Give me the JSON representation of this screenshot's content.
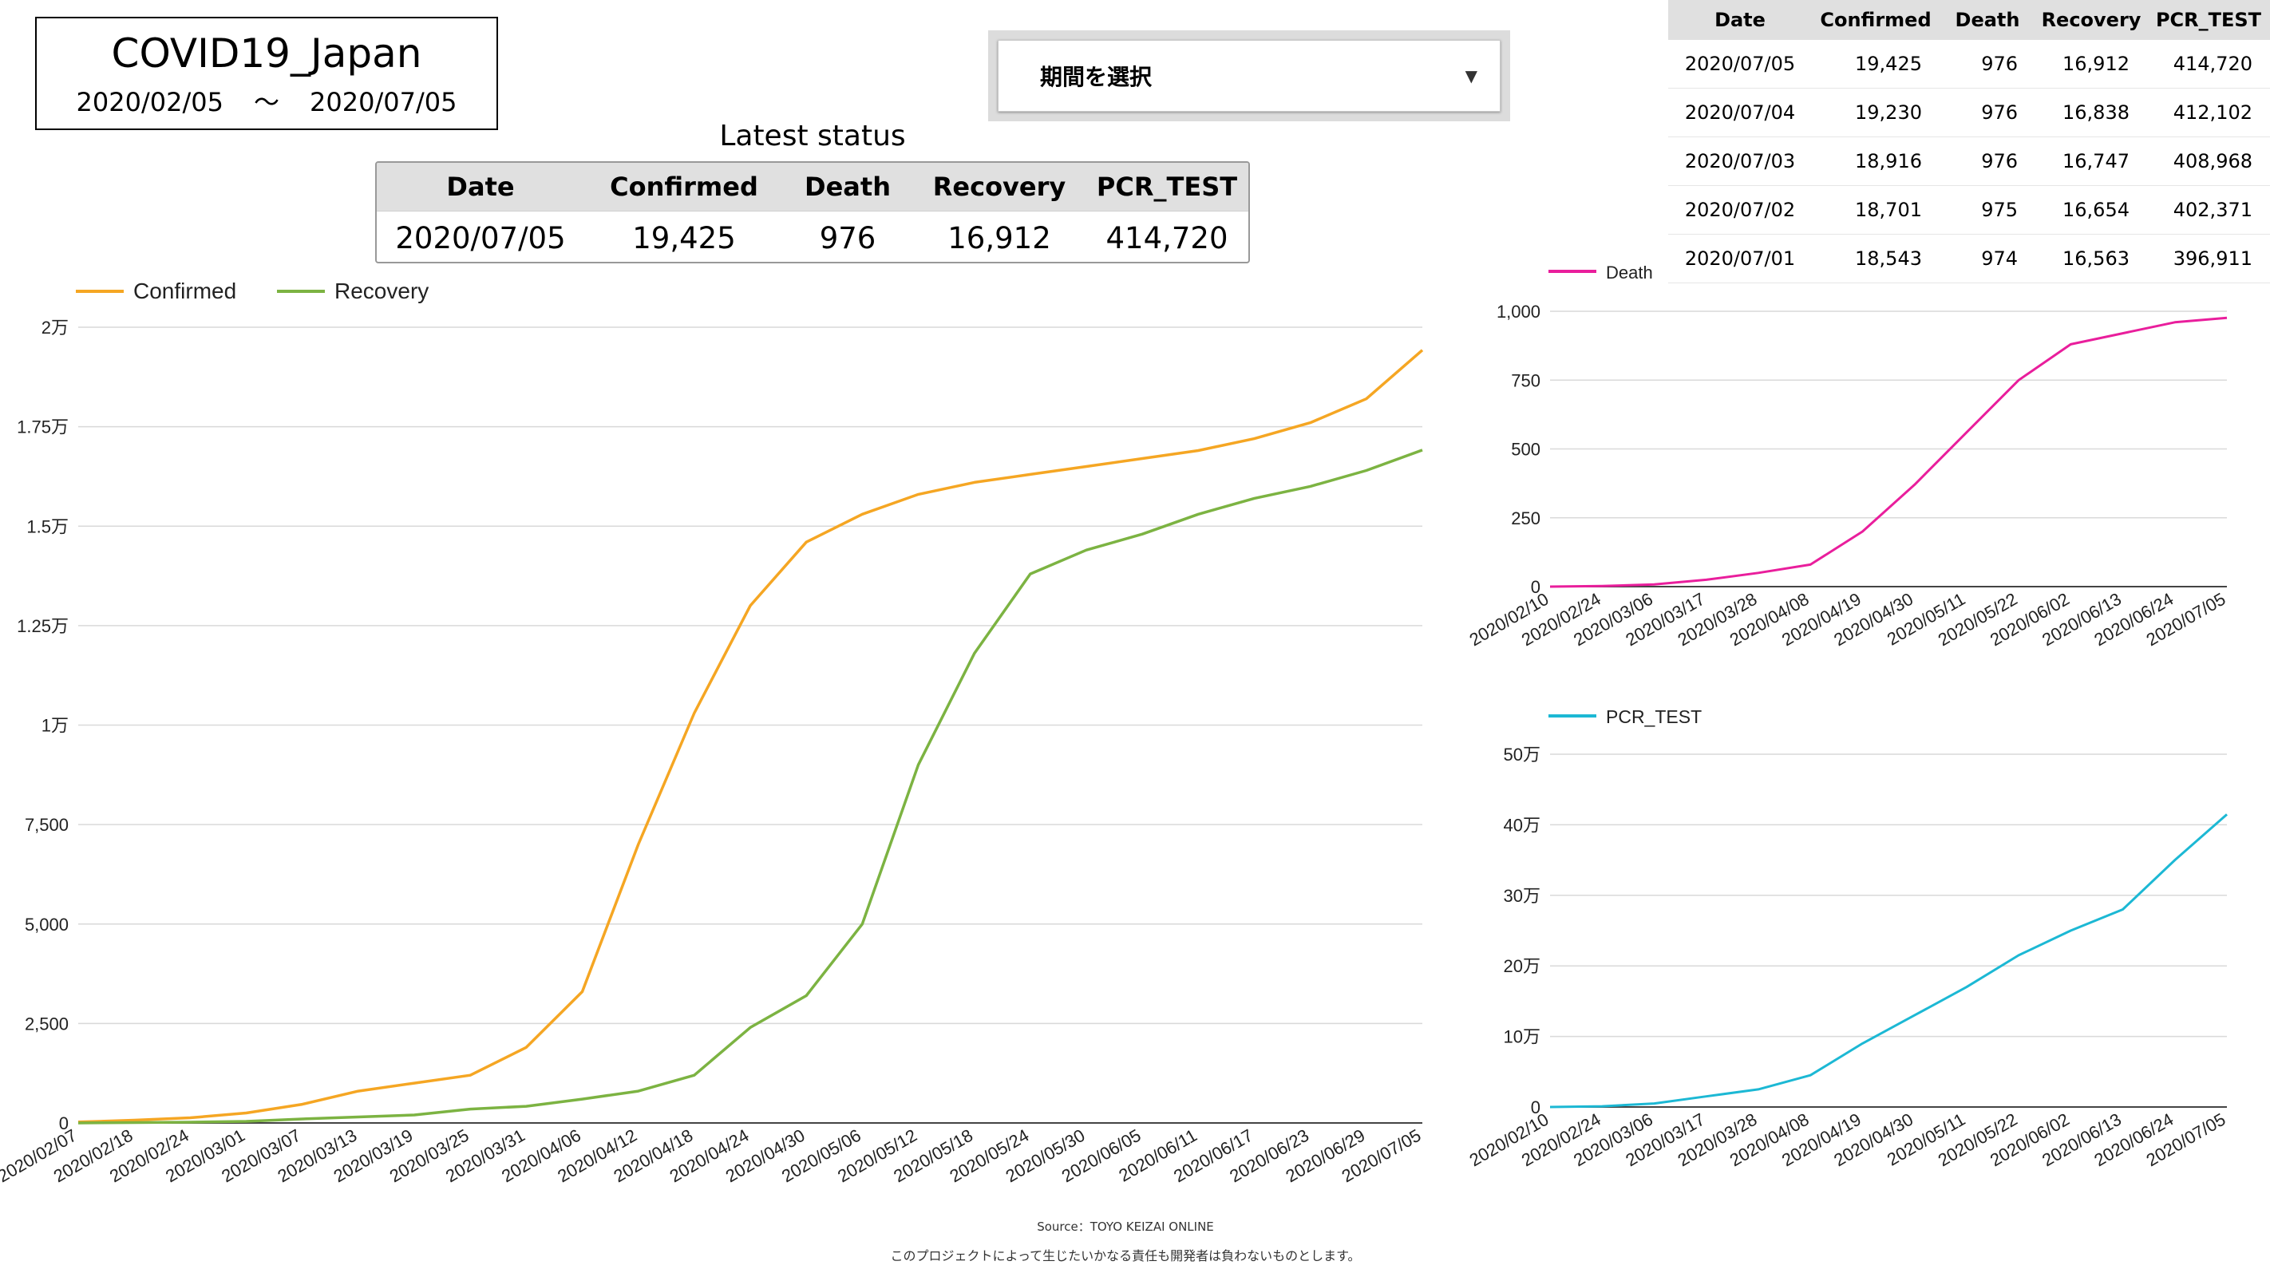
{
  "header": {
    "title": "COVID19_Japan",
    "start_date": "2020/02/05",
    "tilde": "〜",
    "end_date": "2020/07/05"
  },
  "period_select": {
    "label": "期間を選択",
    "caret": "▼"
  },
  "latest_status": {
    "title": "Latest status",
    "columns": [
      "Date",
      "Confirmed",
      "Death",
      "Recovery",
      "PCR_TEST"
    ],
    "row": [
      "2020/07/05",
      "19,425",
      "976",
      "16,912",
      "414,720"
    ]
  },
  "recent_table": {
    "columns": [
      "Date",
      "Confirmed",
      "Death",
      "Recovery",
      "PCR_TEST"
    ],
    "rows": [
      [
        "2020/07/05",
        "19,425",
        "976",
        "16,912",
        "414,720"
      ],
      [
        "2020/07/04",
        "19,230",
        "976",
        "16,838",
        "412,102"
      ],
      [
        "2020/07/03",
        "18,916",
        "976",
        "16,747",
        "408,968"
      ],
      [
        "2020/07/02",
        "18,701",
        "975",
        "16,654",
        "402,371"
      ],
      [
        "2020/07/01",
        "18,543",
        "974",
        "16,563",
        "396,911"
      ]
    ]
  },
  "footer": {
    "source": "Source：TOYO KEIZAI ONLINE",
    "disclaimer": "このプロジェクトによって生じたいかなる責任も開発者は負わないものとします。"
  },
  "colors": {
    "confirmed": "#f5a623",
    "recovery": "#7cb342",
    "death": "#e91e9c",
    "pcr": "#1cb8d4"
  },
  "chart_data": [
    {
      "type": "line",
      "x": [
        "2020/02/07",
        "2020/02/18",
        "2020/02/24",
        "2020/03/01",
        "2020/03/07",
        "2020/03/13",
        "2020/03/19",
        "2020/03/25",
        "2020/03/31",
        "2020/04/06",
        "2020/04/12",
        "2020/04/18",
        "2020/04/24",
        "2020/04/30",
        "2020/05/06",
        "2020/05/12",
        "2020/05/18",
        "2020/05/24",
        "2020/05/30",
        "2020/06/05",
        "2020/06/11",
        "2020/06/17",
        "2020/06/23",
        "2020/06/29",
        "2020/07/05"
      ],
      "series": [
        {
          "name": "Confirmed",
          "values": [
            25,
            70,
            130,
            250,
            470,
            800,
            1000,
            1200,
            1900,
            3300,
            7000,
            10300,
            13000,
            14600,
            15300,
            15800,
            16100,
            16300,
            16500,
            16700,
            16900,
            17200,
            17600,
            18200,
            19425
          ]
        },
        {
          "name": "Recovery",
          "values": [
            0,
            10,
            20,
            40,
            100,
            150,
            200,
            350,
            420,
            600,
            800,
            1200,
            2400,
            3200,
            5000,
            9000,
            11800,
            13800,
            14400,
            14800,
            15300,
            15700,
            16000,
            16400,
            16912
          ]
        }
      ],
      "yticks": [
        "0",
        "2,500",
        "5,000",
        "7,500",
        "1万",
        "1.25万",
        "1.5万",
        "1.75万",
        "2万"
      ],
      "ylim": [
        0,
        20000
      ],
      "legend_position": "top-left",
      "grid": true
    },
    {
      "type": "line",
      "x": [
        "2020/02/10",
        "2020/02/24",
        "2020/03/06",
        "2020/03/17",
        "2020/03/28",
        "2020/04/08",
        "2020/04/19",
        "2020/04/30",
        "2020/05/11",
        "2020/05/22",
        "2020/06/02",
        "2020/06/13",
        "2020/06/24",
        "2020/07/05"
      ],
      "series": [
        {
          "name": "Death",
          "values": [
            0,
            2,
            8,
            25,
            50,
            80,
            200,
            370,
            560,
            750,
            880,
            920,
            960,
            976
          ]
        }
      ],
      "yticks": [
        "0",
        "250",
        "500",
        "750",
        "1,000"
      ],
      "ylim": [
        0,
        1000
      ],
      "legend_position": "top-left",
      "grid": true
    },
    {
      "type": "line",
      "x": [
        "2020/02/10",
        "2020/02/24",
        "2020/03/06",
        "2020/03/17",
        "2020/03/28",
        "2020/04/08",
        "2020/04/19",
        "2020/04/30",
        "2020/05/11",
        "2020/05/22",
        "2020/06/02",
        "2020/06/13",
        "2020/06/24",
        "2020/07/05"
      ],
      "series": [
        {
          "name": "PCR_TEST",
          "values": [
            0,
            1000,
            5000,
            15000,
            25000,
            45000,
            90000,
            130000,
            170000,
            215000,
            250000,
            280000,
            350000,
            414720
          ]
        }
      ],
      "yticks": [
        "0",
        "10万",
        "20万",
        "30万",
        "40万",
        "50万"
      ],
      "ylim": [
        0,
        500000
      ],
      "legend_position": "top-left",
      "grid": true
    }
  ]
}
